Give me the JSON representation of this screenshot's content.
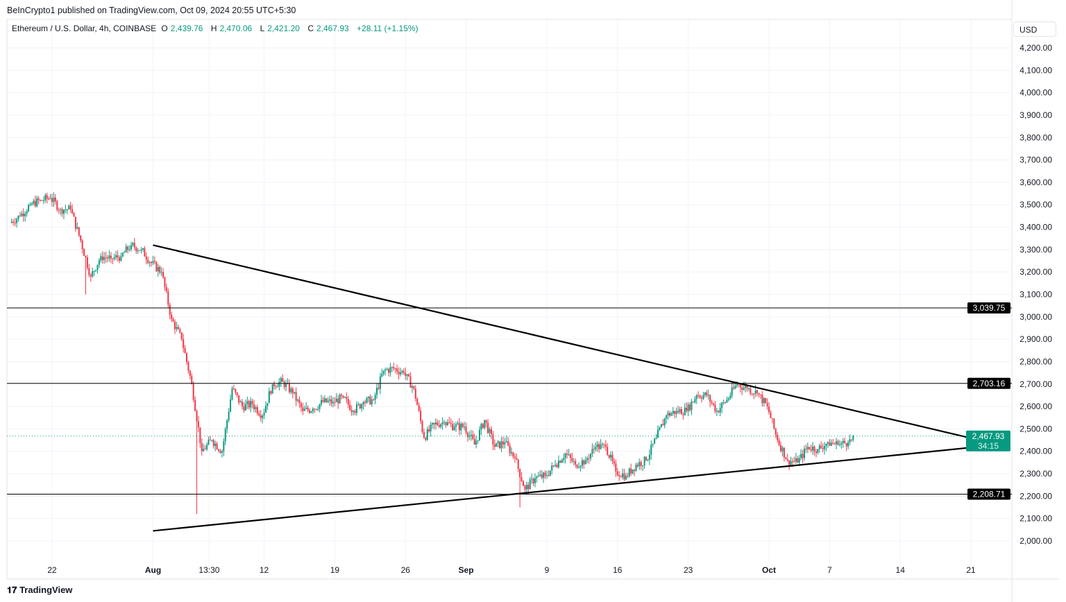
{
  "header": {
    "published": "BeInCrypto1 published on TradingView.com, Oct 09, 2024 20:55 UTC+5:30"
  },
  "legend": {
    "symbol": "Ethereum / U.S. Dollar, 4h, COINBASE",
    "o_label": "O",
    "o": "2,439.76",
    "h_label": "H",
    "h": "2,470.06",
    "l_label": "L",
    "l": "2,421.20",
    "c_label": "C",
    "c": "2,467.93",
    "change": "+28.11 (+1.15%)"
  },
  "footer": {
    "brand": "TradingView"
  },
  "currency": "USD",
  "colors": {
    "up": "#089981",
    "down": "#f23645",
    "line": "#000000",
    "grid": "#f0f3fa"
  },
  "chart_data": {
    "type": "candlestick",
    "ylim": [
      2000,
      4200
    ],
    "yticks": [
      2000,
      2100,
      2200,
      2300,
      2400,
      2500,
      2600,
      2700,
      2800,
      2900,
      3000,
      3100,
      3200,
      3300,
      3400,
      3500,
      3600,
      3700,
      3800,
      3900,
      4000,
      4100,
      4200
    ],
    "ytick_labels": [
      "2,000.00",
      "2,100.00",
      "2,200.00",
      "2,300.00",
      "2,400.00",
      "2,500.00",
      "2,600.00",
      "2,700.00",
      "2,800.00",
      "2,900.00",
      "3,000.00",
      "3,100.00",
      "3,200.00",
      "3,300.00",
      "3,400.00",
      "3,500.00",
      "3,600.00",
      "3,700.00",
      "3,800.00",
      "3,900.00",
      "4,000.00",
      "4,100.00",
      "4,200.00"
    ],
    "xlim": [
      "2024-07-17T12:00",
      "2024-10-29"
    ],
    "xticks": [
      {
        "date": "2024-07-22",
        "label": "22"
      },
      {
        "date": "2024-08-01",
        "label": "Aug"
      },
      {
        "date": "2024-08-06T13:30",
        "label": "13:30"
      },
      {
        "date": "2024-08-12",
        "label": "12"
      },
      {
        "date": "2024-08-19",
        "label": "19"
      },
      {
        "date": "2024-08-26",
        "label": "26"
      },
      {
        "date": "2024-09-01",
        "label": "Sep"
      },
      {
        "date": "2024-09-09",
        "label": "9"
      },
      {
        "date": "2024-09-16",
        "label": "16"
      },
      {
        "date": "2024-09-23",
        "label": "23"
      },
      {
        "date": "2024-10-01",
        "label": "Oct"
      },
      {
        "date": "2024-10-07",
        "label": "7"
      },
      {
        "date": "2024-10-14",
        "label": "14"
      },
      {
        "date": "2024-10-21",
        "label": "21"
      }
    ],
    "series_start": "2024-07-18",
    "daily_close": [
      3450,
      3500,
      3520,
      3530,
      3480,
      3480,
      3340,
      3180,
      3270,
      3260,
      3270,
      3320,
      3300,
      3240,
      3200,
      2990,
      2900,
      2700,
      2400,
      2450,
      2400,
      2680,
      2600,
      2610,
      2560,
      2700,
      2710,
      2660,
      2580,
      2590,
      2620,
      2620,
      2640,
      2580,
      2620,
      2630,
      2760,
      2770,
      2750,
      2680,
      2460,
      2520,
      2530,
      2510,
      2510,
      2430,
      2540,
      2420,
      2440,
      2370,
      2230,
      2280,
      2290,
      2340,
      2390,
      2340,
      2360,
      2420,
      2420,
      2310,
      2290,
      2340,
      2360,
      2460,
      2560,
      2580,
      2580,
      2650,
      2650,
      2580,
      2630,
      2700,
      2680,
      2660,
      2600,
      2450,
      2360,
      2350,
      2420,
      2410,
      2440,
      2430,
      2440,
      2467.93
    ],
    "notable_lows": [
      {
        "date": "2024-07-25",
        "value": 3100
      },
      {
        "date": "2024-08-05",
        "value": 2120
      },
      {
        "date": "2024-09-06",
        "value": 2150
      }
    ],
    "horizontal_levels": [
      {
        "value": 3039.75,
        "label": "3,039.75"
      },
      {
        "value": 2703.16,
        "label": "2,703.16"
      },
      {
        "value": 2208.71,
        "label": "2,208.71"
      }
    ],
    "trendlines": [
      {
        "from": {
          "date": "2024-08-01",
          "value": 3320
        },
        "to": {
          "date": "2024-10-22T18:00",
          "value": 2440
        }
      },
      {
        "from": {
          "date": "2024-08-01",
          "value": 2045
        },
        "to": {
          "date": "2024-10-22T18:00",
          "value": 2425
        }
      }
    ],
    "last_price": {
      "value": 2467.93,
      "label": "2,467.93",
      "countdown": "34:15"
    }
  }
}
